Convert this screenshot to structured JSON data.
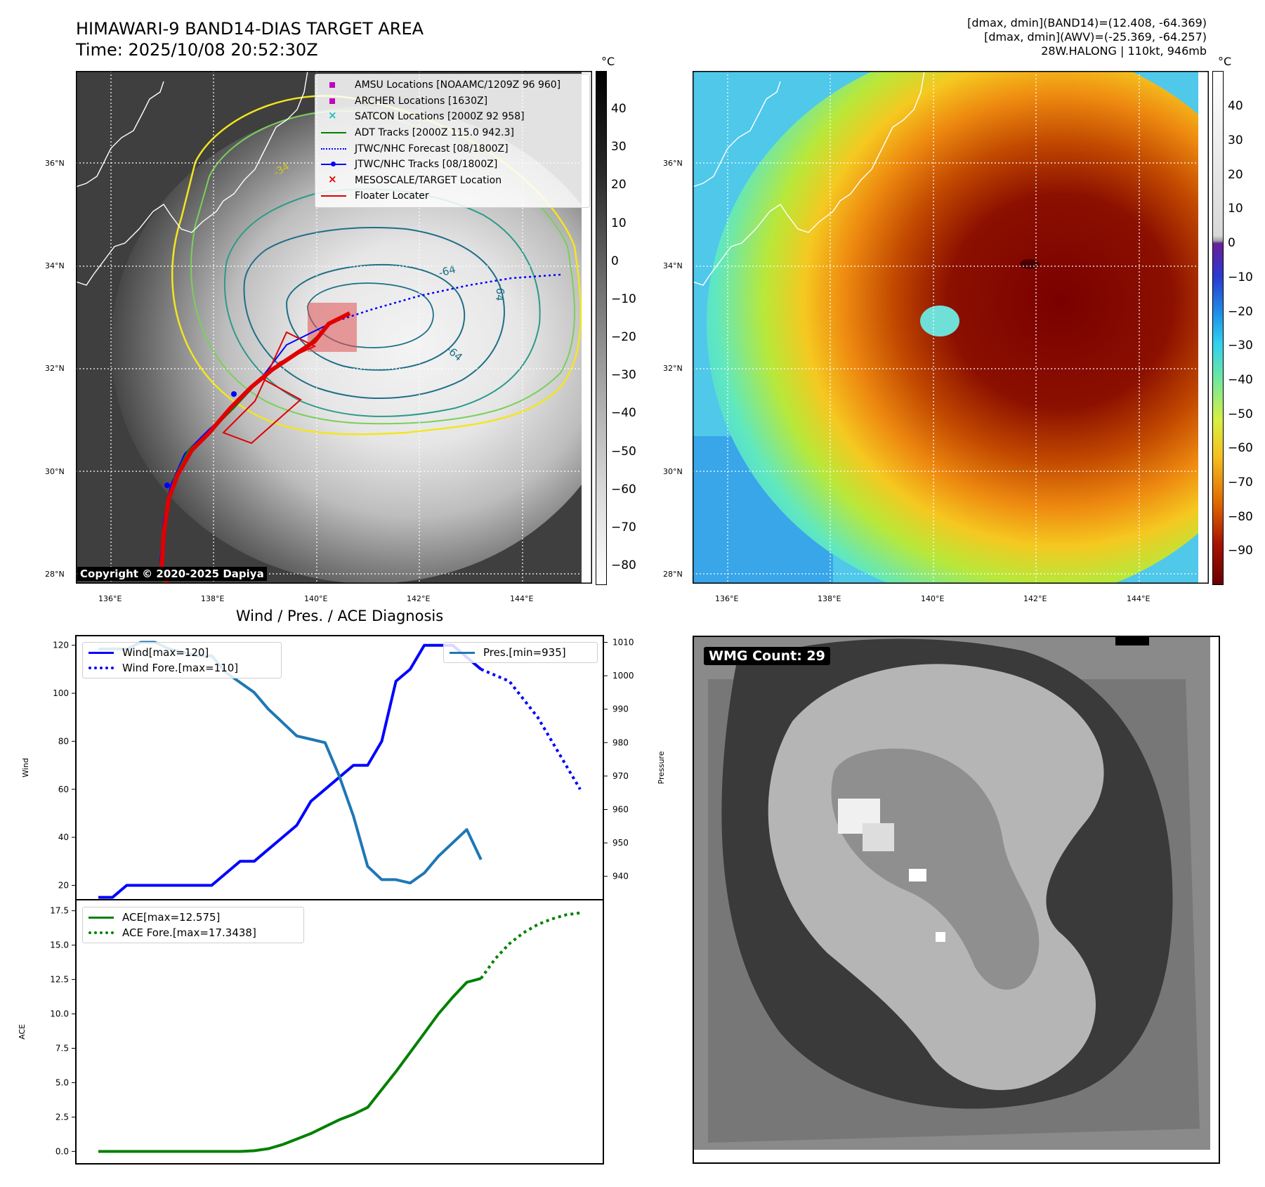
{
  "header": {
    "title_line1": "HIMAWARI-9 BAND14-DIAS TARGET AREA",
    "title_line2": "Time: 2025/10/08 20:52:30Z",
    "info_line1": "[dmax, dmin](BAND14)=(12.408, -64.369)",
    "info_line2": "[dmax, dmin](AWV)=(-25.369, -64.257)",
    "info_line3": "28W.HALONG | 110kt, 946mb"
  },
  "map_axes": {
    "lat_labels": [
      "36°N",
      "34°N",
      "32°N",
      "30°N",
      "28°N"
    ],
    "lon_labels": [
      "136°E",
      "138°E",
      "140°E",
      "142°E",
      "144°E"
    ]
  },
  "ir_panel": {
    "colorbar_unit": "°C",
    "colorbar_ticks": [
      "40",
      "30",
      "20",
      "10",
      "0",
      "−10",
      "−20",
      "−30",
      "−40",
      "−50",
      "−60",
      "−70",
      "−80"
    ],
    "contour_labels": [
      "-64",
      "-64",
      "-64",
      "-34"
    ],
    "copyright": "Copyright © 2020-2025 Dapiya",
    "legend": [
      {
        "label": "AMSU Locations [NOAAMC/1209Z 96 960]",
        "color": "#c000c0",
        "symbol": "square"
      },
      {
        "label": "ARCHER Locations [1630Z]",
        "color": "#c000c0",
        "symbol": "square"
      },
      {
        "label": "SATCON Locations [2000Z 92 958]",
        "color": "#20c0c0",
        "symbol": "x"
      },
      {
        "label": "ADT Tracks [2000Z 115.0 942.3]",
        "color": "#008000",
        "symbol": "line"
      },
      {
        "label": "JTWC/NHC Forecast [08/1800Z]",
        "color": "#0000ff",
        "symbol": "dotted"
      },
      {
        "label": "JTWC/NHC Tracks [08/1800Z]",
        "color": "#0000ff",
        "symbol": "line-dot"
      },
      {
        "label": "MESOSCALE/TARGET Location",
        "color": "#e00000",
        "symbol": "x"
      },
      {
        "label": "Floater Locater",
        "color": "#e00000",
        "symbol": "line"
      }
    ]
  },
  "color_panel": {
    "colorbar_unit": "°C",
    "colorbar_ticks": [
      "40",
      "30",
      "20",
      "10",
      "0",
      "−10",
      "−20",
      "−30",
      "−40",
      "−50",
      "−60",
      "−70",
      "−80",
      "−90"
    ]
  },
  "diag_panel": {
    "title": "Wind / Pres. / ACE Diagnosis",
    "wind_ylabel": "Wind",
    "pres_ylabel": "Pressure",
    "ace_ylabel": "ACE",
    "wind_ticks": [
      "120",
      "100",
      "80",
      "60",
      "40",
      "20"
    ],
    "pres_ticks": [
      "1010",
      "1000",
      "990",
      "980",
      "970",
      "960",
      "950",
      "940"
    ],
    "ace_ticks": [
      "17.5",
      "15.0",
      "12.5",
      "10.0",
      "7.5",
      "5.0",
      "2.5",
      "0.0"
    ],
    "legend_wind": "Wind[max=120]",
    "legend_wind_fore": "Wind Fore.[max=110]",
    "legend_pres": "Pres.[min=935]",
    "legend_ace": "ACE[max=12.575]",
    "legend_ace_fore": "ACE Fore.[max=17.3438]"
  },
  "wmg_panel": {
    "label": "WMG Count: 29"
  },
  "chart_data": [
    {
      "type": "line",
      "title": "Wind / Pres. / ACE Diagnosis",
      "ylabel": "Wind",
      "ylim": [
        14,
        124
      ],
      "x": [
        0,
        1,
        2,
        3,
        4,
        5,
        6,
        7,
        8,
        9,
        10,
        11,
        12,
        13,
        14,
        15,
        16,
        17,
        18,
        19,
        20,
        21,
        22,
        23,
        24,
        25,
        26,
        27,
        28,
        29,
        30,
        31,
        32,
        33,
        34
      ],
      "series": [
        {
          "name": "Wind[max=120]",
          "color": "#0000ff",
          "x": [
            0,
            1,
            2,
            3,
            4,
            5,
            6,
            7,
            8,
            9,
            10,
            11,
            12,
            13,
            14,
            15,
            16,
            17,
            18,
            19,
            20,
            21,
            22,
            23,
            24,
            25,
            26,
            27
          ],
          "values": [
            15,
            15,
            20,
            20,
            20,
            20,
            20,
            20,
            20,
            25,
            30,
            30,
            35,
            40,
            45,
            55,
            60,
            65,
            70,
            70,
            80,
            105,
            110,
            120,
            120,
            120,
            115,
            110
          ]
        },
        {
          "name": "Wind Fore.[max=110]",
          "color": "#0000ff",
          "style": "dotted",
          "x": [
            27,
            29,
            31,
            34
          ],
          "values": [
            110,
            105,
            90,
            60
          ]
        }
      ]
    },
    {
      "type": "line",
      "ylabel": "Pressure",
      "ylim": [
        933,
        1012
      ],
      "series": [
        {
          "name": "Pres.[min=935]",
          "color": "#1f77b4",
          "x": [
            0,
            1,
            2,
            3,
            4,
            5,
            6,
            7,
            8,
            9,
            10,
            11,
            12,
            13,
            14,
            15,
            16,
            17,
            18,
            19,
            20,
            21,
            22,
            23,
            24,
            25,
            26,
            27
          ],
          "values": [
            1008,
            1008,
            1008,
            1010,
            1010,
            1008,
            1007,
            1006,
            1006,
            1001,
            998,
            995,
            990,
            986,
            982,
            981,
            980,
            970,
            958,
            943,
            939,
            939,
            938,
            941,
            946,
            950,
            954,
            945
          ]
        }
      ]
    },
    {
      "type": "line",
      "ylabel": "ACE",
      "ylim": [
        -0.9,
        18.3
      ],
      "series": [
        {
          "name": "ACE[max=12.575]",
          "color": "#008000",
          "x": [
            0,
            2,
            4,
            6,
            8,
            10,
            11,
            12,
            13,
            14,
            15,
            16,
            17,
            18,
            19,
            20,
            21,
            22,
            23,
            24,
            25,
            26,
            27
          ],
          "values": [
            0,
            0,
            0,
            0,
            0,
            0,
            0.05,
            0.2,
            0.5,
            0.9,
            1.3,
            1.8,
            2.3,
            2.7,
            3.2,
            4.5,
            5.8,
            7.2,
            8.6,
            10.0,
            11.2,
            12.3,
            12.575
          ]
        },
        {
          "name": "ACE Fore.[max=17.3438]",
          "color": "#008000",
          "style": "dotted",
          "x": [
            27,
            28,
            29,
            30,
            31,
            32,
            33,
            34
          ],
          "values": [
            12.575,
            14.0,
            15.1,
            15.9,
            16.5,
            16.9,
            17.2,
            17.3438
          ]
        }
      ]
    }
  ]
}
